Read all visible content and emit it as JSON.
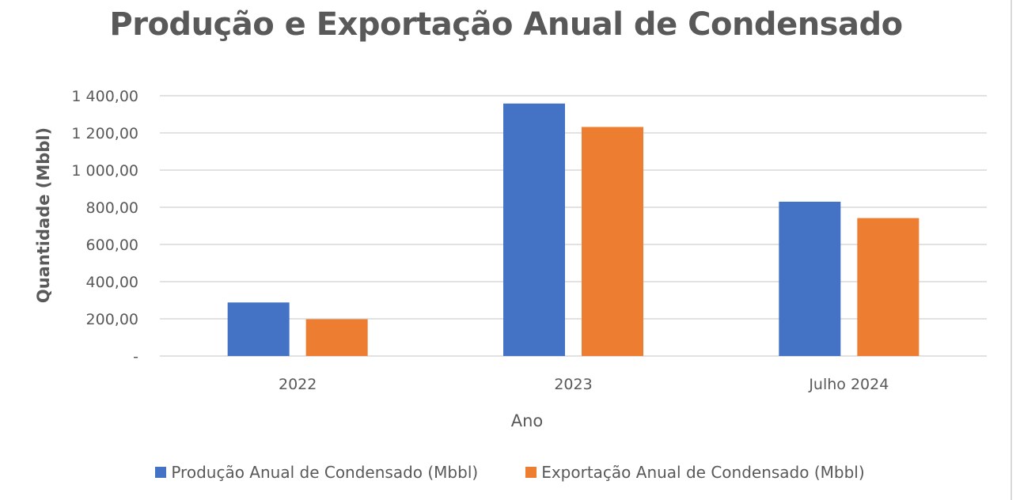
{
  "chart_data": {
    "type": "bar",
    "title": "Produção e Exportação Anual de Condensado",
    "xlabel": "Ano",
    "ylabel": "Quantidade (Mbbl)",
    "categories": [
      "2022",
      "2023",
      "Julho 2024"
    ],
    "series": [
      {
        "name": "Produção Anual de Condensado (Mbbl)",
        "color": "#4472C4",
        "values": [
          288,
          1358,
          830
        ]
      },
      {
        "name": "Exportação Anual de Condensado (Mbbl)",
        "color": "#ED7D31",
        "values": [
          198,
          1232,
          742
        ]
      }
    ],
    "ylim": [
      0,
      1400
    ],
    "yticks": [
      0,
      200,
      400,
      600,
      800,
      1000,
      1200,
      1400
    ],
    "ytick_labels": [
      "-",
      "200,00",
      "400,00",
      "600,00",
      "800,00",
      "1 000,00",
      "1 200,00",
      "1 400,00"
    ],
    "grid": true,
    "legend_position": "bottom"
  }
}
